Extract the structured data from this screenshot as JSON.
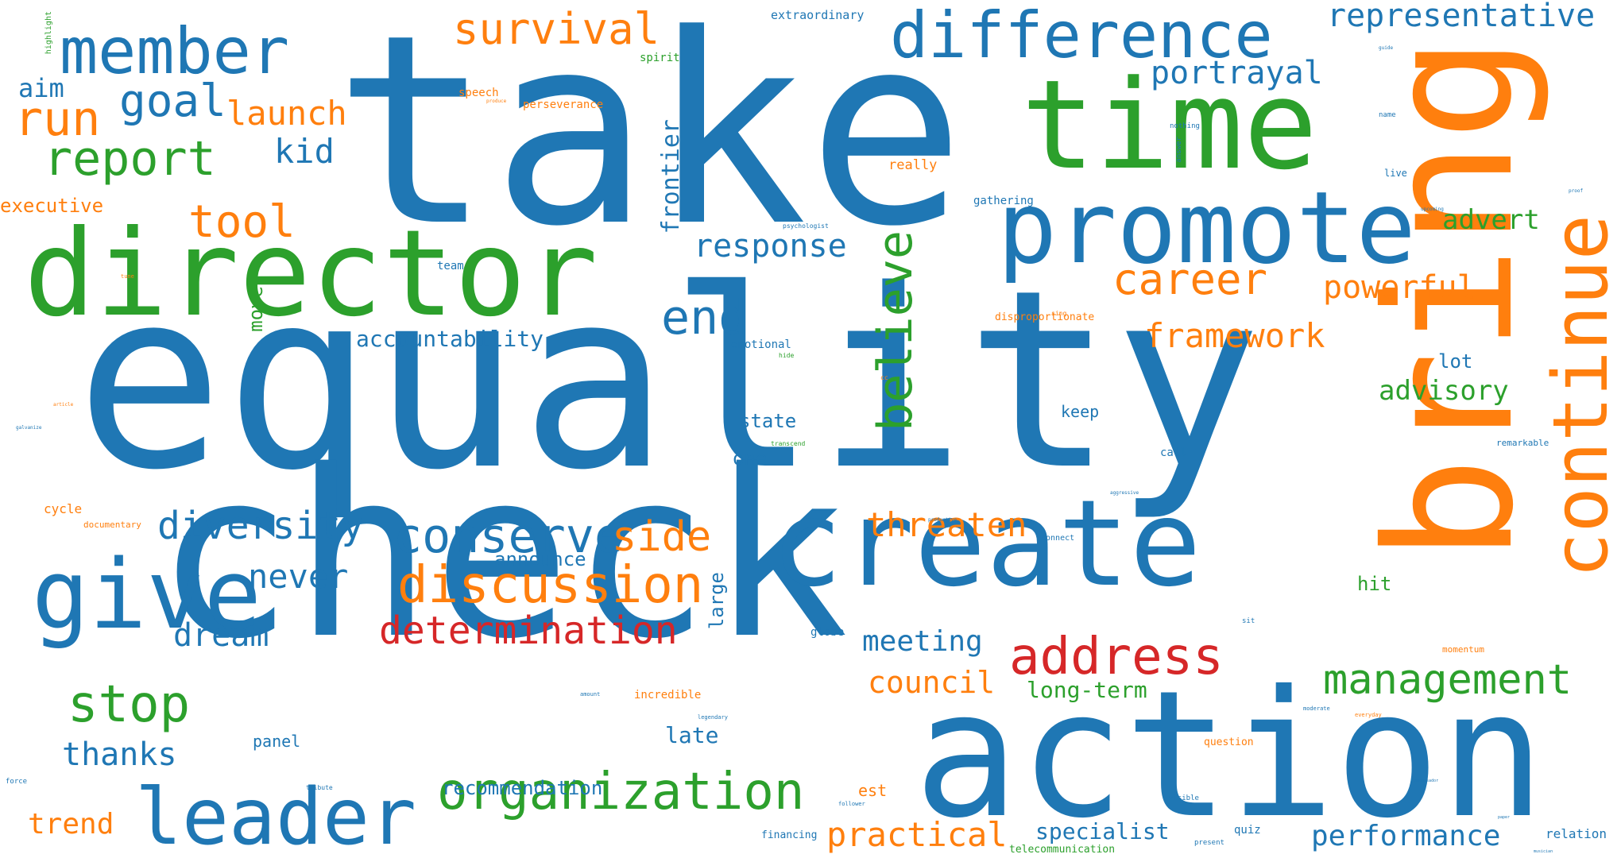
{
  "colors": {
    "blue": "#1f77b4",
    "orange": "#ff7f0e",
    "green": "#2ca02c",
    "red": "#d62728"
  },
  "words": [
    {
      "text": "take",
      "color": "blue"
    },
    {
      "text": "equality",
      "color": "blue"
    },
    {
      "text": "check",
      "color": "blue"
    },
    {
      "text": "bring",
      "color": "orange"
    },
    {
      "text": "action",
      "color": "blue"
    },
    {
      "text": "director",
      "color": "green"
    },
    {
      "text": "time",
      "color": "green"
    },
    {
      "text": "create",
      "color": "blue"
    },
    {
      "text": "promote",
      "color": "blue"
    },
    {
      "text": "give",
      "color": "blue"
    },
    {
      "text": "continue",
      "color": "orange"
    },
    {
      "text": "member",
      "color": "blue"
    },
    {
      "text": "difference",
      "color": "blue"
    },
    {
      "text": "leader",
      "color": "blue"
    },
    {
      "text": "organization",
      "color": "green"
    },
    {
      "text": "discussion",
      "color": "orange"
    },
    {
      "text": "address",
      "color": "red"
    },
    {
      "text": "management",
      "color": "green"
    },
    {
      "text": "stop",
      "color": "green"
    },
    {
      "text": "believe",
      "color": "green"
    },
    {
      "text": "conserve",
      "color": "blue"
    },
    {
      "text": "diversity",
      "color": "blue"
    },
    {
      "text": "determination",
      "color": "red"
    },
    {
      "text": "report",
      "color": "green"
    },
    {
      "text": "end",
      "color": "blue"
    },
    {
      "text": "response",
      "color": "blue"
    },
    {
      "text": "run",
      "color": "orange"
    },
    {
      "text": "goal",
      "color": "blue"
    },
    {
      "text": "career",
      "color": "orange"
    },
    {
      "text": "framework",
      "color": "orange"
    },
    {
      "text": "representative",
      "color": "blue"
    },
    {
      "text": "portrayal",
      "color": "blue"
    },
    {
      "text": "powerful",
      "color": "orange"
    },
    {
      "text": "survival",
      "color": "orange"
    },
    {
      "text": "tool",
      "color": "orange"
    },
    {
      "text": "side",
      "color": "orange"
    },
    {
      "text": "threaten",
      "color": "orange"
    },
    {
      "text": "performance",
      "color": "blue"
    },
    {
      "text": "practical",
      "color": "orange"
    },
    {
      "text": "council",
      "color": "orange"
    },
    {
      "text": "meeting",
      "color": "blue"
    },
    {
      "text": "advert",
      "color": "green"
    },
    {
      "text": "advisory",
      "color": "green"
    },
    {
      "text": "never",
      "color": "blue"
    },
    {
      "text": "launch",
      "color": "orange"
    },
    {
      "text": "kid",
      "color": "blue"
    },
    {
      "text": "dream",
      "color": "blue"
    },
    {
      "text": "thanks",
      "color": "blue"
    },
    {
      "text": "trend",
      "color": "orange"
    },
    {
      "text": "accountability",
      "color": "blue"
    },
    {
      "text": "long-term",
      "color": "green"
    },
    {
      "text": "specialist",
      "color": "blue"
    },
    {
      "text": "recommendation",
      "color": "blue"
    },
    {
      "text": "announce",
      "color": "blue"
    },
    {
      "text": "frontier",
      "color": "blue"
    },
    {
      "text": "aim",
      "color": "blue"
    },
    {
      "text": "executive",
      "color": "orange"
    },
    {
      "text": "move",
      "color": "green"
    },
    {
      "text": "state",
      "color": "blue"
    },
    {
      "text": "one",
      "color": "blue"
    },
    {
      "text": "lot",
      "color": "blue"
    },
    {
      "text": "hit",
      "color": "green"
    },
    {
      "text": "large",
      "color": "blue"
    },
    {
      "text": "late",
      "color": "blue"
    },
    {
      "text": "keep",
      "color": "blue"
    },
    {
      "text": "est",
      "color": "orange"
    },
    {
      "text": "panel",
      "color": "blue"
    },
    {
      "text": "relation",
      "color": "blue"
    },
    {
      "text": "cycle",
      "color": "orange"
    },
    {
      "text": "really",
      "color": "orange"
    },
    {
      "text": "extraordinary",
      "color": "blue"
    },
    {
      "text": "spirit",
      "color": "green"
    },
    {
      "text": "speech",
      "color": "orange"
    },
    {
      "text": "perseverance",
      "color": "orange"
    },
    {
      "text": "team",
      "color": "blue"
    },
    {
      "text": "emotional",
      "color": "blue"
    },
    {
      "text": "gathering",
      "color": "blue"
    },
    {
      "text": "disproportionate",
      "color": "orange"
    },
    {
      "text": "call",
      "color": "blue"
    },
    {
      "text": "remarkable",
      "color": "blue"
    },
    {
      "text": "momentum",
      "color": "orange"
    },
    {
      "text": "question",
      "color": "orange"
    },
    {
      "text": "incredible",
      "color": "orange"
    },
    {
      "text": "globe",
      "color": "blue"
    },
    {
      "text": "financing",
      "color": "blue"
    },
    {
      "text": "quiz",
      "color": "blue"
    },
    {
      "text": "telecommunication",
      "color": "green"
    },
    {
      "text": "documentary",
      "color": "orange"
    },
    {
      "text": "highlight",
      "color": "green"
    },
    {
      "text": "live",
      "color": "blue"
    },
    {
      "text": "name",
      "color": "blue"
    },
    {
      "text": "nothing",
      "color": "blue"
    },
    {
      "text": "answer",
      "color": "blue"
    },
    {
      "text": "connect",
      "color": "blue"
    },
    {
      "text": "sit",
      "color": "blue"
    },
    {
      "text": "present",
      "color": "blue"
    },
    {
      "text": "visible",
      "color": "blue"
    },
    {
      "text": "force",
      "color": "blue"
    },
    {
      "text": "tribute",
      "color": "blue"
    },
    {
      "text": "legendary",
      "color": "blue"
    },
    {
      "text": "follower",
      "color": "blue"
    },
    {
      "text": "amount",
      "color": "blue"
    },
    {
      "text": "transcend",
      "color": "green"
    },
    {
      "text": "hide",
      "color": "green"
    },
    {
      "text": "psychologist",
      "color": "blue"
    },
    {
      "text": "upcoming",
      "color": "blue"
    },
    {
      "text": "produce",
      "color": "orange"
    },
    {
      "text": "sing",
      "color": "orange"
    },
    {
      "text": "moderate",
      "color": "blue"
    },
    {
      "text": "everyday",
      "color": "orange"
    },
    {
      "text": "article",
      "color": "orange"
    },
    {
      "text": "galvanize",
      "color": "blue"
    },
    {
      "text": "injustice",
      "color": "blue"
    },
    {
      "text": "tune",
      "color": "orange"
    },
    {
      "text": "cc",
      "color": "orange"
    },
    {
      "text": "proof",
      "color": "blue"
    },
    {
      "text": "guide",
      "color": "blue"
    },
    {
      "text": "musician",
      "color": "blue"
    },
    {
      "text": "paper",
      "color": "blue"
    },
    {
      "text": "ambassador",
      "color": "blue"
    },
    {
      "text": "productive",
      "color": "blue"
    },
    {
      "text": "aggressive",
      "color": "blue"
    }
  ]
}
